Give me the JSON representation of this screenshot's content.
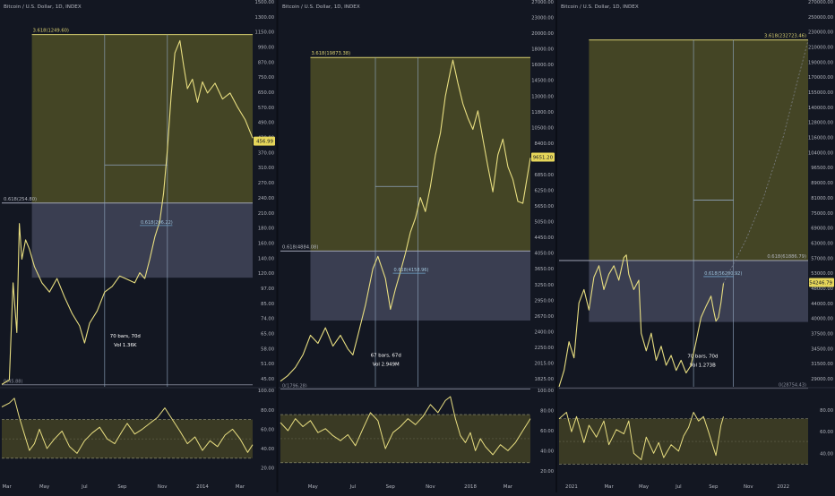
{
  "colors": {
    "background": "#131722",
    "price_line": "#e8de80",
    "upper_zone": "#4a4a26",
    "lower_zone": "#3f4257",
    "fib_line": "#d8cf70",
    "fib_low_line": "#9fa3b4",
    "guide_line": "#8fa4bc",
    "measure_line": "#6fa2c8",
    "rsi_band": "#3a3a24",
    "axis_text": "#b2b5be",
    "price_badge_bg": "#e6d65a",
    "divider": "#0b0e16"
  },
  "chart_data": [
    {
      "type": "line",
      "title": "Bitcoin / U.S. Dollar, 1D, INDEX",
      "scale": "log",
      "ylim": [
        45,
        1500
      ],
      "price_ticks": [
        "1500.00",
        "1300.00",
        "1150.00",
        "990.00",
        "870.00",
        "750.00",
        "650.00",
        "570.00",
        "490.00",
        "430.00",
        "370.00",
        "310.00",
        "270.00",
        "240.00",
        "210.00",
        "180.00",
        "160.00",
        "140.00",
        "120.00",
        "97.00",
        "85.00",
        "74.00",
        "65.00",
        "58.00",
        "51.00",
        "45.00"
      ],
      "x_ticks": [
        {
          "label": "Mar",
          "x": 0.02
        },
        {
          "label": "May",
          "x": 0.17
        },
        {
          "label": "Jul",
          "x": 0.33
        },
        {
          "label": "Sep",
          "x": 0.48
        },
        {
          "label": "Nov",
          "x": 0.64
        },
        {
          "label": "2014",
          "x": 0.8
        },
        {
          "label": "Mar",
          "x": 0.95
        }
      ],
      "fib_upper": {
        "label": "3.618(1249.60)",
        "value": 1249.6
      },
      "fib_mid": {
        "label": "0.618(254.80)",
        "value": 254.8
      },
      "fib_base": {
        "label": "0(45.88)",
        "value": 45.88
      },
      "zone_low_value": 126,
      "measure": {
        "label": "0.618(206.22)",
        "value": 206.22
      },
      "time_box": {
        "x_start": 0.41,
        "x_end": 0.66,
        "level": 365
      },
      "bars_text": "70 bars, 70d",
      "vol_text": "Vol 1.36K",
      "price_badge": "456.99",
      "current_price": 456.99,
      "rsi_ticks": [
        "100.00",
        "80.00",
        "60.00",
        "40.00",
        "20.00"
      ],
      "rsi_ylim": [
        15,
        102
      ],
      "rsi_band": [
        30,
        70
      ],
      "price_series": [
        [
          0.0,
          46
        ],
        [
          0.03,
          48
        ],
        [
          0.045,
          120
        ],
        [
          0.06,
          75
        ],
        [
          0.07,
          210
        ],
        [
          0.08,
          150
        ],
        [
          0.095,
          180
        ],
        [
          0.11,
          165
        ],
        [
          0.13,
          140
        ],
        [
          0.16,
          120
        ],
        [
          0.19,
          110
        ],
        [
          0.22,
          125
        ],
        [
          0.25,
          105
        ],
        [
          0.28,
          90
        ],
        [
          0.31,
          80
        ],
        [
          0.33,
          68
        ],
        [
          0.35,
          82
        ],
        [
          0.38,
          92
        ],
        [
          0.41,
          110
        ],
        [
          0.44,
          116
        ],
        [
          0.47,
          128
        ],
        [
          0.5,
          124
        ],
        [
          0.53,
          120
        ],
        [
          0.55,
          132
        ],
        [
          0.57,
          125
        ],
        [
          0.59,
          150
        ],
        [
          0.61,
          185
        ],
        [
          0.63,
          215
        ],
        [
          0.645,
          280
        ],
        [
          0.66,
          420
        ],
        [
          0.675,
          700
        ],
        [
          0.69,
          1050
        ],
        [
          0.71,
          1180
        ],
        [
          0.725,
          930
        ],
        [
          0.74,
          750
        ],
        [
          0.76,
          820
        ],
        [
          0.78,
          660
        ],
        [
          0.8,
          800
        ],
        [
          0.82,
          720
        ],
        [
          0.85,
          790
        ],
        [
          0.88,
          680
        ],
        [
          0.91,
          720
        ],
        [
          0.94,
          630
        ],
        [
          0.97,
          560
        ],
        [
          1.0,
          470
        ]
      ],
      "rsi_series": [
        [
          0.0,
          83
        ],
        [
          0.03,
          87
        ],
        [
          0.05,
          92
        ],
        [
          0.07,
          72
        ],
        [
          0.09,
          55
        ],
        [
          0.11,
          38
        ],
        [
          0.13,
          45
        ],
        [
          0.15,
          60
        ],
        [
          0.18,
          40
        ],
        [
          0.21,
          50
        ],
        [
          0.24,
          58
        ],
        [
          0.27,
          42
        ],
        [
          0.3,
          35
        ],
        [
          0.33,
          48
        ],
        [
          0.36,
          56
        ],
        [
          0.39,
          62
        ],
        [
          0.42,
          50
        ],
        [
          0.45,
          45
        ],
        [
          0.48,
          58
        ],
        [
          0.5,
          66
        ],
        [
          0.53,
          55
        ],
        [
          0.56,
          60
        ],
        [
          0.59,
          66
        ],
        [
          0.62,
          72
        ],
        [
          0.65,
          82
        ],
        [
          0.68,
          70
        ],
        [
          0.71,
          58
        ],
        [
          0.74,
          45
        ],
        [
          0.77,
          52
        ],
        [
          0.8,
          38
        ],
        [
          0.83,
          48
        ],
        [
          0.86,
          42
        ],
        [
          0.89,
          54
        ],
        [
          0.92,
          60
        ],
        [
          0.95,
          50
        ],
        [
          0.98,
          36
        ],
        [
          1.0,
          44
        ]
      ]
    },
    {
      "type": "line",
      "title": "Bitcoin / U.S. Dollar, 1D, INDEX",
      "scale": "log",
      "ylim": [
        1825,
        27000
      ],
      "price_ticks": [
        "27000.00",
        "23000.00",
        "20000.00",
        "18000.00",
        "16000.00",
        "14500.00",
        "13000.00",
        "11800.00",
        "10500.00",
        "8400.00",
        "7500.00",
        "6850.00",
        "6250.00",
        "5650.00",
        "5050.00",
        "4450.00",
        "4050.00",
        "3650.00",
        "3250.00",
        "2950.00",
        "2670.00",
        "2400.00",
        "2250.00",
        "2015.00",
        "1825.00"
      ],
      "x_ticks": [
        {
          "label": "May",
          "x": 0.13
        },
        {
          "label": "Jul",
          "x": 0.29
        },
        {
          "label": "Sep",
          "x": 0.44
        },
        {
          "label": "Nov",
          "x": 0.6
        },
        {
          "label": "2018",
          "x": 0.76
        },
        {
          "label": "Mar",
          "x": 0.91
        }
      ],
      "fib_upper": {
        "label": "3.618(19873.38)",
        "value": 19873.38
      },
      "fib_mid": {
        "label": "0.618(4884.08)",
        "value": 4884.08
      },
      "fib_base": {
        "label": "0(1796.28)",
        "value": 1796.28
      },
      "zone_low_value": 2950,
      "measure": {
        "label": "0.618(4158.96)",
        "value": 4158.96
      },
      "time_box": {
        "x_start": 0.38,
        "x_end": 0.55,
        "level": 7800
      },
      "bars_text": "67 bars, 67d",
      "vol_text": "Vol 2.949M",
      "price_badge": "9651.20",
      "current_price": 9651.2,
      "rsi_ticks": [
        "100.00",
        "80.00",
        "60.00",
        "40.00",
        "20.00"
      ],
      "rsi_ylim": [
        18,
        102
      ],
      "rsi_band": [
        28,
        76
      ],
      "price_series": [
        [
          0.0,
          1900
        ],
        [
          0.03,
          1980
        ],
        [
          0.06,
          2100
        ],
        [
          0.09,
          2300
        ],
        [
          0.12,
          2650
        ],
        [
          0.15,
          2500
        ],
        [
          0.18,
          2800
        ],
        [
          0.21,
          2450
        ],
        [
          0.24,
          2650
        ],
        [
          0.27,
          2400
        ],
        [
          0.29,
          2300
        ],
        [
          0.31,
          2650
        ],
        [
          0.34,
          3300
        ],
        [
          0.37,
          4300
        ],
        [
          0.39,
          4700
        ],
        [
          0.42,
          4000
        ],
        [
          0.44,
          3200
        ],
        [
          0.46,
          3700
        ],
        [
          0.48,
          4200
        ],
        [
          0.5,
          4800
        ],
        [
          0.52,
          5600
        ],
        [
          0.54,
          6200
        ],
        [
          0.56,
          7200
        ],
        [
          0.58,
          6500
        ],
        [
          0.6,
          7800
        ],
        [
          0.62,
          9800
        ],
        [
          0.64,
          11500
        ],
        [
          0.66,
          15000
        ],
        [
          0.68,
          18000
        ],
        [
          0.69,
          19500
        ],
        [
          0.71,
          16500
        ],
        [
          0.73,
          14200
        ],
        [
          0.75,
          12800
        ],
        [
          0.77,
          11800
        ],
        [
          0.79,
          13500
        ],
        [
          0.81,
          11000
        ],
        [
          0.83,
          9000
        ],
        [
          0.85,
          7500
        ],
        [
          0.87,
          9800
        ],
        [
          0.89,
          11000
        ],
        [
          0.91,
          9000
        ],
        [
          0.93,
          8200
        ],
        [
          0.95,
          7000
        ],
        [
          0.97,
          6900
        ],
        [
          1.0,
          9600
        ]
      ],
      "rsi_series": [
        [
          0.0,
          68
        ],
        [
          0.03,
          60
        ],
        [
          0.06,
          72
        ],
        [
          0.09,
          64
        ],
        [
          0.12,
          70
        ],
        [
          0.15,
          58
        ],
        [
          0.18,
          62
        ],
        [
          0.21,
          55
        ],
        [
          0.24,
          50
        ],
        [
          0.27,
          56
        ],
        [
          0.3,
          45
        ],
        [
          0.33,
          62
        ],
        [
          0.36,
          78
        ],
        [
          0.39,
          70
        ],
        [
          0.42,
          42
        ],
        [
          0.45,
          58
        ],
        [
          0.48,
          64
        ],
        [
          0.51,
          72
        ],
        [
          0.54,
          66
        ],
        [
          0.57,
          74
        ],
        [
          0.6,
          86
        ],
        [
          0.63,
          78
        ],
        [
          0.66,
          90
        ],
        [
          0.68,
          94
        ],
        [
          0.7,
          72
        ],
        [
          0.72,
          55
        ],
        [
          0.74,
          48
        ],
        [
          0.76,
          58
        ],
        [
          0.78,
          40
        ],
        [
          0.8,
          52
        ],
        [
          0.82,
          44
        ],
        [
          0.85,
          36
        ],
        [
          0.88,
          46
        ],
        [
          0.91,
          40
        ],
        [
          0.94,
          48
        ],
        [
          0.97,
          60
        ],
        [
          1.0,
          72
        ]
      ]
    },
    {
      "type": "line",
      "title": "Bitcoin / U.S. Dollar, 1D, INDEX",
      "scale": "log",
      "ylim": [
        29000,
        270000
      ],
      "price_ticks": [
        "270000.00",
        "250000.00",
        "230000.00",
        "210000.00",
        "190000.00",
        "170000.00",
        "155000.00",
        "140000.00",
        "128000.00",
        "116000.00",
        "104000.00",
        "96500.00",
        "89000.00",
        "81000.00",
        "75000.00",
        "69000.00",
        "63000.00",
        "57000.00",
        "53000.00",
        "48000.00",
        "44000.00",
        "40000.00",
        "37500.00",
        "34500.00",
        "31500.00",
        "29000.00"
      ],
      "x_ticks": [
        {
          "label": "2021",
          "x": 0.05
        },
        {
          "label": "Mar",
          "x": 0.2
        },
        {
          "label": "May",
          "x": 0.34
        },
        {
          "label": "Jul",
          "x": 0.48
        },
        {
          "label": "Sep",
          "x": 0.62
        },
        {
          "label": "Nov",
          "x": 0.76
        },
        {
          "label": "2022",
          "x": 0.9
        }
      ],
      "fib_upper": {
        "label": "3.618(232723.46)",
        "value": 232723.46
      },
      "fib_mid": {
        "label": "0.618(61886.79)",
        "value": 61886.79
      },
      "fib_base": {
        "label": "0(28754.43)",
        "value": 28754.43
      },
      "zone_low_value": 42800,
      "measure": {
        "label": "0.618(56200.92)",
        "value": 56200.92
      },
      "time_box": {
        "x_start": 0.54,
        "x_end": 0.7,
        "level": 89000
      },
      "bars_text": "70 bars, 70d",
      "vol_text": "Vol 1.273B",
      "price_badge": "54246.79",
      "current_price": 54246.79,
      "rsi_ticks": [
        "80.00",
        "60.00",
        "40.00"
      ],
      "rsi_ylim": [
        22,
        100
      ],
      "rsi_band": [
        30,
        72
      ],
      "projection": [
        [
          0.66,
          54000
        ],
        [
          0.75,
          70000
        ],
        [
          0.82,
          90000
        ],
        [
          0.9,
          130000
        ],
        [
          0.96,
          185000
        ],
        [
          1.0,
          232000
        ]
      ],
      "price_series": [
        [
          0.0,
          29000
        ],
        [
          0.02,
          32000
        ],
        [
          0.04,
          38000
        ],
        [
          0.06,
          34500
        ],
        [
          0.08,
          48000
        ],
        [
          0.1,
          52000
        ],
        [
          0.12,
          46000
        ],
        [
          0.14,
          56000
        ],
        [
          0.16,
          60000
        ],
        [
          0.18,
          52000
        ],
        [
          0.2,
          57000
        ],
        [
          0.22,
          60000
        ],
        [
          0.24,
          55000
        ],
        [
          0.26,
          63000
        ],
        [
          0.27,
          64000
        ],
        [
          0.28,
          57000
        ],
        [
          0.3,
          52000
        ],
        [
          0.32,
          55000
        ],
        [
          0.33,
          40000
        ],
        [
          0.35,
          36000
        ],
        [
          0.37,
          40000
        ],
        [
          0.39,
          34000
        ],
        [
          0.41,
          37000
        ],
        [
          0.43,
          33000
        ],
        [
          0.45,
          35000
        ],
        [
          0.47,
          32000
        ],
        [
          0.49,
          34000
        ],
        [
          0.51,
          31500
        ],
        [
          0.53,
          33000
        ],
        [
          0.55,
          38000
        ],
        [
          0.57,
          44000
        ],
        [
          0.59,
          47000
        ],
        [
          0.61,
          50000
        ],
        [
          0.62,
          46000
        ],
        [
          0.63,
          43000
        ],
        [
          0.64,
          44000
        ],
        [
          0.65,
          48000
        ],
        [
          0.66,
          54000
        ]
      ],
      "rsi_series": [
        [
          0.0,
          72
        ],
        [
          0.03,
          78
        ],
        [
          0.05,
          60
        ],
        [
          0.07,
          74
        ],
        [
          0.1,
          50
        ],
        [
          0.12,
          66
        ],
        [
          0.15,
          55
        ],
        [
          0.18,
          70
        ],
        [
          0.2,
          48
        ],
        [
          0.23,
          62
        ],
        [
          0.26,
          58
        ],
        [
          0.28,
          70
        ],
        [
          0.3,
          40
        ],
        [
          0.33,
          34
        ],
        [
          0.35,
          55
        ],
        [
          0.38,
          40
        ],
        [
          0.4,
          50
        ],
        [
          0.42,
          36
        ],
        [
          0.45,
          48
        ],
        [
          0.48,
          42
        ],
        [
          0.5,
          56
        ],
        [
          0.52,
          64
        ],
        [
          0.54,
          78
        ],
        [
          0.56,
          70
        ],
        [
          0.58,
          74
        ],
        [
          0.6,
          60
        ],
        [
          0.62,
          45
        ],
        [
          0.63,
          38
        ],
        [
          0.65,
          66
        ],
        [
          0.66,
          74
        ]
      ]
    }
  ]
}
